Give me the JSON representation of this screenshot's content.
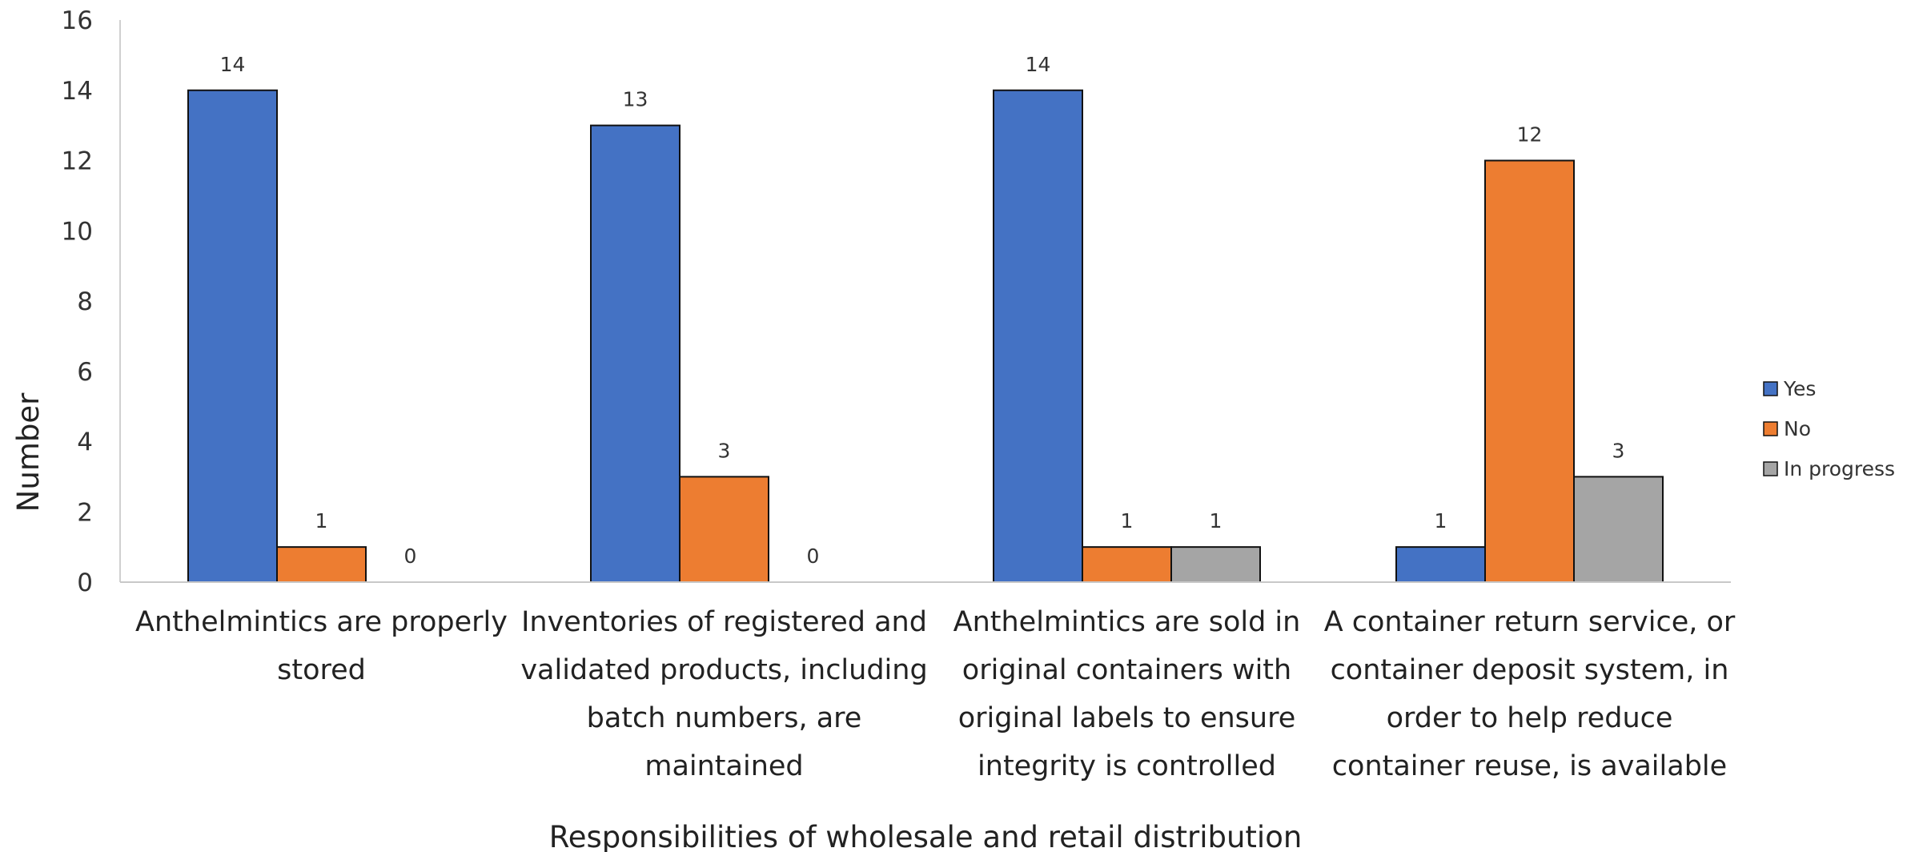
{
  "chart_data": {
    "type": "bar",
    "categories": [
      [
        "Anthelmintics are properly",
        "stored"
      ],
      [
        "Inventories of registered and",
        "validated products, including",
        "batch numbers, are",
        "maintained"
      ],
      [
        "Anthelmintics are sold in",
        "original containers with",
        "original labels to ensure",
        "integrity is controlled"
      ],
      [
        "A container return service, or",
        "container deposit system, in",
        "order to help reduce",
        "container reuse, is available"
      ]
    ],
    "series": [
      {
        "name": "Yes",
        "color": "#4472C4",
        "values": [
          14,
          13,
          14,
          1
        ]
      },
      {
        "name": "No",
        "color": "#ED7D31",
        "values": [
          1,
          3,
          1,
          12
        ]
      },
      {
        "name": "In progress",
        "color": "#A5A5A5",
        "values": [
          0,
          0,
          1,
          3
        ]
      }
    ],
    "xlabel": "Responsibilities of wholesale and retail distribution",
    "ylabel": "Number",
    "ylim": [
      0,
      16
    ],
    "yticks": [
      0,
      2,
      4,
      6,
      8,
      10,
      12,
      14,
      16
    ],
    "data_labels": true,
    "grid": false,
    "legend_position": "right"
  }
}
